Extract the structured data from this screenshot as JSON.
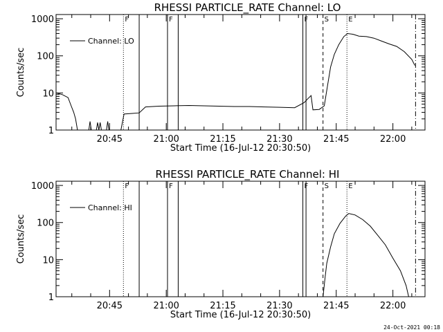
{
  "footer_text": "24-Oct-2021 00:18",
  "chart_data": [
    {
      "type": "line",
      "title": "RHESSI PARTICLE_RATE Channel: LO",
      "xlabel": "Start Time (16-Jul-12 20:30:50)",
      "ylabel": "Counts/sec",
      "legend": "Channel: LO",
      "legend_position": "top-left",
      "x_ticks": [
        "20:45",
        "21:00",
        "21:15",
        "21:30",
        "21:45",
        "22:00"
      ],
      "y_ticks": [
        "1",
        "10",
        "100",
        "1000"
      ],
      "y_scale": "log",
      "xlim": [
        "20:30:50",
        "22:08:30"
      ],
      "ylim": [
        1,
        1300
      ],
      "grid": false,
      "markers": [
        {
          "label": "F",
          "time": "20:48:40",
          "style": "dotted"
        },
        {
          "label": "",
          "time": "20:52:50",
          "style": "solid"
        },
        {
          "label": "F",
          "time": "21:00:20",
          "style": "solid"
        },
        {
          "label": "",
          "time": "21:03:10",
          "style": "solid"
        },
        {
          "label": "F",
          "time": "21:36:10",
          "style": "solid"
        },
        {
          "label": "",
          "time": "21:37:00",
          "style": "solid"
        },
        {
          "label": "S",
          "time": "21:41:30",
          "style": "dashed"
        },
        {
          "label": "E",
          "time": "21:47:50",
          "style": "dotted"
        },
        {
          "label": "",
          "time": "22:06:00",
          "style": "dashdot"
        }
      ],
      "series": [
        {
          "name": "Channel: LO",
          "points": [
            [
              "20:30:50",
              10
            ],
            [
              "20:32:30",
              9
            ],
            [
              "20:34:00",
              7.5
            ],
            [
              "20:34:50",
              4.5
            ],
            [
              "20:35:30",
              3
            ],
            [
              "20:36:00",
              2
            ],
            [
              "20:36:30",
              1
            ],
            null,
            [
              "20:39:30",
              1
            ],
            [
              "20:39:50",
              1.7
            ],
            [
              "20:40:10",
              1
            ],
            null,
            [
              "20:41:30",
              1
            ],
            [
              "20:41:50",
              1.6
            ],
            [
              "20:42:10",
              1
            ],
            [
              "20:42:30",
              1.6
            ],
            [
              "20:42:50",
              1
            ],
            null,
            [
              "20:44:10",
              1
            ],
            [
              "20:44:30",
              1.7
            ],
            [
              "20:44:50",
              1
            ],
            null,
            [
              "20:48:00",
              1
            ],
            [
              "20:48:20",
              1.5
            ],
            [
              "20:48:50",
              2.7
            ],
            [
              "20:51:00",
              2.8
            ],
            [
              "20:52:50",
              2.9
            ],
            [
              "20:54:30",
              4.2
            ],
            [
              "20:58:00",
              4.4
            ],
            [
              "21:02:00",
              4.5
            ],
            [
              "21:06:00",
              4.6
            ],
            [
              "21:10:00",
              4.5
            ],
            [
              "21:14:00",
              4.4
            ],
            [
              "21:18:00",
              4.3
            ],
            [
              "21:22:00",
              4.3
            ],
            [
              "21:26:00",
              4.2
            ],
            [
              "21:30:00",
              4.1
            ],
            [
              "21:34:00",
              4.0
            ],
            [
              "21:36:30",
              5.5
            ],
            [
              "21:37:30",
              7
            ],
            [
              "21:38:20",
              8.5
            ],
            [
              "21:38:50",
              3.5
            ],
            [
              "21:40:30",
              3.6
            ],
            [
              "21:41:50",
              4.5
            ],
            [
              "21:42:40",
              15
            ],
            [
              "21:43:30",
              50
            ],
            [
              "21:44:30",
              110
            ],
            [
              "21:45:40",
              200
            ],
            [
              "21:47:00",
              330
            ],
            [
              "21:48:00",
              400
            ],
            [
              "21:49:30",
              380
            ],
            [
              "21:51:00",
              340
            ],
            [
              "21:53:00",
              330
            ],
            [
              "21:55:00",
              300
            ],
            [
              "21:57:00",
              250
            ],
            [
              "21:59:00",
              210
            ],
            [
              "22:01:00",
              180
            ],
            [
              "22:03:00",
              130
            ],
            [
              "22:05:00",
              80
            ],
            [
              "22:05:50",
              55
            ]
          ]
        }
      ]
    },
    {
      "type": "line",
      "title": "RHESSI PARTICLE_RATE Channel: HI",
      "xlabel": "Start Time (16-Jul-12 20:30:50)",
      "ylabel": "Counts/sec",
      "legend": "Channel: HI",
      "legend_position": "top-left",
      "x_ticks": [
        "20:45",
        "21:00",
        "21:15",
        "21:30",
        "21:45",
        "22:00"
      ],
      "y_ticks": [
        "1",
        "10",
        "100",
        "1000"
      ],
      "y_scale": "log",
      "xlim": [
        "20:30:50",
        "22:08:30"
      ],
      "ylim": [
        1,
        1300
      ],
      "grid": false,
      "markers": [
        {
          "label": "F",
          "time": "20:48:40",
          "style": "dotted"
        },
        {
          "label": "",
          "time": "20:52:50",
          "style": "solid"
        },
        {
          "label": "F",
          "time": "21:00:20",
          "style": "solid"
        },
        {
          "label": "",
          "time": "21:03:10",
          "style": "solid"
        },
        {
          "label": "F",
          "time": "21:36:10",
          "style": "solid"
        },
        {
          "label": "",
          "time": "21:37:00",
          "style": "solid"
        },
        {
          "label": "S",
          "time": "21:41:30",
          "style": "dashed"
        },
        {
          "label": "E",
          "time": "21:47:50",
          "style": "dotted"
        },
        {
          "label": "",
          "time": "22:06:00",
          "style": "dashdot"
        }
      ],
      "series": [
        {
          "name": "Channel: HI",
          "points": [
            [
              "21:41:30",
              1
            ],
            [
              "21:42:00",
              3
            ],
            [
              "21:42:30",
              8
            ],
            [
              "21:43:30",
              22
            ],
            [
              "21:44:30",
              50
            ],
            [
              "21:46:00",
              95
            ],
            [
              "21:47:30",
              150
            ],
            [
              "21:48:20",
              175
            ],
            [
              "21:50:00",
              160
            ],
            [
              "21:52:00",
              120
            ],
            [
              "21:54:00",
              80
            ],
            [
              "21:56:00",
              45
            ],
            [
              "21:58:00",
              25
            ],
            [
              "22:00:00",
              11
            ],
            [
              "22:02:00",
              5
            ],
            [
              "22:03:30",
              2
            ],
            [
              "22:04:10",
              1
            ]
          ]
        }
      ]
    }
  ]
}
